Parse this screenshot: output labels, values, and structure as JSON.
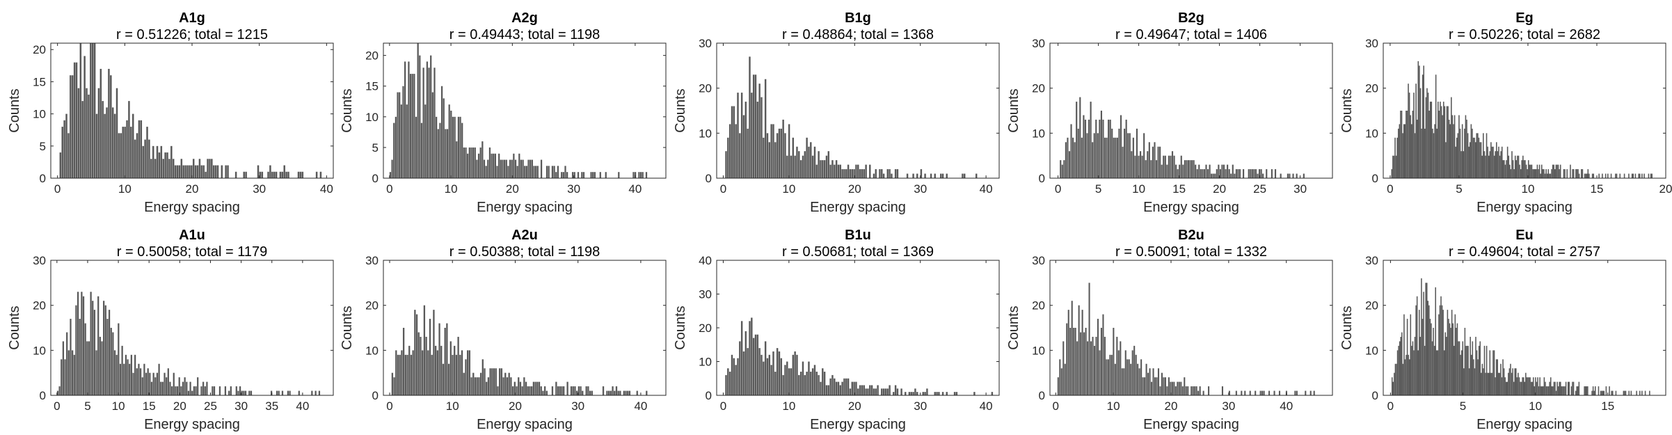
{
  "figure": {
    "background": "#ffffff",
    "bar_color": "#595959",
    "axis_color": "#262626"
  },
  "chart_data": [
    {
      "type": "bar",
      "title": "A1g",
      "subtitle": "r = 0.51226; total = 1215",
      "xlabel": "Energy spacing",
      "ylabel": "Counts",
      "xlim": [
        -1,
        41
      ],
      "ylim": [
        0,
        21
      ],
      "xticks": [
        0,
        10,
        20,
        30,
        40
      ],
      "yticks": [
        0,
        5,
        10,
        15,
        20
      ],
      "grid": false,
      "bin_width": 0.3,
      "envelope": [
        [
          0,
          0
        ],
        [
          0.3,
          4
        ],
        [
          1,
          8
        ],
        [
          2,
          13
        ],
        [
          3,
          16
        ],
        [
          4,
          18
        ],
        [
          5,
          17
        ],
        [
          6,
          14
        ],
        [
          7,
          13
        ],
        [
          8,
          12
        ],
        [
          9,
          10
        ],
        [
          10,
          9
        ],
        [
          12,
          7
        ],
        [
          14,
          5
        ],
        [
          16,
          4
        ],
        [
          18,
          3
        ],
        [
          20,
          2.5
        ],
        [
          22,
          2
        ],
        [
          25,
          1.5
        ],
        [
          28,
          1
        ],
        [
          32,
          0.7
        ],
        [
          36,
          0.4
        ],
        [
          40,
          0.2
        ]
      ],
      "data_max": 39
    },
    {
      "type": "bar",
      "title": "A2g",
      "subtitle": "r = 0.49443; total = 1198",
      "xlabel": "Energy spacing",
      "ylabel": "Counts",
      "xlim": [
        -1,
        45
      ],
      "ylim": [
        0,
        22
      ],
      "xticks": [
        0,
        10,
        20,
        30,
        40
      ],
      "yticks": [
        0,
        5,
        10,
        15,
        20
      ],
      "grid": false,
      "bin_width": 0.3,
      "envelope": [
        [
          0,
          0
        ],
        [
          0.3,
          4
        ],
        [
          1,
          9
        ],
        [
          2,
          13
        ],
        [
          3,
          15
        ],
        [
          4,
          16
        ],
        [
          5,
          16
        ],
        [
          6,
          15
        ],
        [
          7,
          14
        ],
        [
          8,
          12
        ],
        [
          9,
          10
        ],
        [
          10,
          9
        ],
        [
          12,
          7
        ],
        [
          14,
          5
        ],
        [
          16,
          4
        ],
        [
          18,
          3
        ],
        [
          20,
          3
        ],
        [
          22,
          2
        ],
        [
          25,
          1.5
        ],
        [
          28,
          1
        ],
        [
          32,
          0.7
        ],
        [
          36,
          0.4
        ],
        [
          42,
          0.2
        ]
      ],
      "data_max": 42
    },
    {
      "type": "bar",
      "title": "B1g",
      "subtitle": "r = 0.48864; total = 1368",
      "xlabel": "Energy spacing",
      "ylabel": "Counts",
      "xlim": [
        -1,
        42
      ],
      "ylim": [
        0,
        30
      ],
      "xticks": [
        0,
        10,
        20,
        30,
        40
      ],
      "yticks": [
        0,
        10,
        20,
        30
      ],
      "grid": false,
      "bin_width": 0.3,
      "envelope": [
        [
          0,
          0
        ],
        [
          0.3,
          5
        ],
        [
          1,
          11
        ],
        [
          2,
          15
        ],
        [
          3,
          18
        ],
        [
          4,
          19
        ],
        [
          5,
          18
        ],
        [
          6,
          16
        ],
        [
          7,
          14
        ],
        [
          8,
          12
        ],
        [
          9,
          10
        ],
        [
          10,
          9
        ],
        [
          12,
          7
        ],
        [
          14,
          5
        ],
        [
          16,
          4
        ],
        [
          18,
          3
        ],
        [
          20,
          2
        ],
        [
          22,
          1.5
        ],
        [
          25,
          1
        ],
        [
          28,
          0.8
        ],
        [
          32,
          0.4
        ],
        [
          36,
          0.2
        ]
      ],
      "data_max": 40
    },
    {
      "type": "bar",
      "title": "B2g",
      "subtitle": "r = 0.49647; total = 1406",
      "xlabel": "Energy spacing",
      "ylabel": "Counts",
      "xlim": [
        -1,
        34
      ],
      "ylim": [
        0,
        30
      ],
      "xticks": [
        0,
        5,
        10,
        15,
        20,
        25,
        30
      ],
      "yticks": [
        0,
        10,
        20,
        30
      ],
      "grid": false,
      "bin_width": 0.22,
      "envelope": [
        [
          0,
          0
        ],
        [
          0.3,
          4
        ],
        [
          1,
          9
        ],
        [
          2,
          13
        ],
        [
          3,
          14
        ],
        [
          4,
          14
        ],
        [
          5,
          13
        ],
        [
          6,
          12
        ],
        [
          7,
          11
        ],
        [
          8,
          10
        ],
        [
          9,
          9
        ],
        [
          10,
          8
        ],
        [
          11,
          7
        ],
        [
          13,
          5
        ],
        [
          15,
          4
        ],
        [
          17,
          3
        ],
        [
          19,
          2.5
        ],
        [
          22,
          2
        ],
        [
          25,
          1.2
        ],
        [
          28,
          0.8
        ],
        [
          31,
          0.5
        ],
        [
          33,
          0.3
        ]
      ],
      "data_max": 32
    },
    {
      "type": "bar",
      "title": "Eg",
      "subtitle": "r = 0.50226; total = 2682",
      "xlabel": "Energy spacing",
      "ylabel": "Counts",
      "xlim": [
        -0.5,
        20
      ],
      "ylim": [
        0,
        30
      ],
      "xticks": [
        0,
        5,
        10,
        15,
        20
      ],
      "yticks": [
        0,
        10,
        20,
        30
      ],
      "grid": false,
      "bin_width": 0.08,
      "envelope": [
        [
          0,
          0
        ],
        [
          0.1,
          4
        ],
        [
          0.5,
          9
        ],
        [
          1,
          13
        ],
        [
          1.5,
          16
        ],
        [
          2,
          18
        ],
        [
          2.5,
          18
        ],
        [
          3,
          17
        ],
        [
          3.5,
          15
        ],
        [
          4,
          14
        ],
        [
          5,
          11
        ],
        [
          6,
          9
        ],
        [
          7,
          7
        ],
        [
          8,
          5.5
        ],
        [
          9,
          4
        ],
        [
          10,
          3
        ],
        [
          11,
          2.5
        ],
        [
          12,
          2
        ],
        [
          13,
          1.5
        ],
        [
          14,
          1
        ],
        [
          15,
          0.8
        ],
        [
          17,
          0.4
        ],
        [
          19,
          0.2
        ]
      ],
      "data_max": 19
    },
    {
      "type": "bar",
      "title": "A1u",
      "subtitle": "r = 0.50058; total = 1179",
      "xlabel": "Energy spacing",
      "ylabel": "Counts",
      "xlim": [
        -1,
        45
      ],
      "ylim": [
        0,
        30
      ],
      "xticks": [
        0,
        5,
        10,
        15,
        20,
        25,
        30,
        35,
        40
      ],
      "yticks": [
        0,
        10,
        20,
        30
      ],
      "grid": false,
      "bin_width": 0.3,
      "envelope": [
        [
          0,
          0
        ],
        [
          0.3,
          4
        ],
        [
          1,
          9
        ],
        [
          2,
          13
        ],
        [
          3,
          16
        ],
        [
          4,
          17
        ],
        [
          5,
          17
        ],
        [
          6,
          16
        ],
        [
          7,
          15
        ],
        [
          8,
          14
        ],
        [
          9,
          12
        ],
        [
          10,
          11
        ],
        [
          12,
          8
        ],
        [
          14,
          6
        ],
        [
          16,
          5
        ],
        [
          18,
          4
        ],
        [
          20,
          3
        ],
        [
          22,
          2
        ],
        [
          25,
          1.5
        ],
        [
          28,
          1
        ],
        [
          32,
          0.6
        ],
        [
          36,
          0.4
        ],
        [
          42,
          0.2
        ]
      ],
      "data_max": 43
    },
    {
      "type": "bar",
      "title": "A2u",
      "subtitle": "r = 0.50388; total = 1198",
      "xlabel": "Energy spacing",
      "ylabel": "Counts",
      "xlim": [
        -1,
        44
      ],
      "ylim": [
        0,
        30
      ],
      "xticks": [
        0,
        10,
        20,
        30,
        40
      ],
      "yticks": [
        0,
        10,
        20,
        30
      ],
      "grid": false,
      "bin_width": 0.3,
      "envelope": [
        [
          0,
          0
        ],
        [
          0.3,
          4
        ],
        [
          1,
          9
        ],
        [
          2,
          12
        ],
        [
          3,
          14
        ],
        [
          4,
          15
        ],
        [
          5,
          15
        ],
        [
          6,
          15
        ],
        [
          7,
          14
        ],
        [
          8,
          13
        ],
        [
          9,
          12
        ],
        [
          10,
          11
        ],
        [
          12,
          8
        ],
        [
          14,
          6
        ],
        [
          16,
          5
        ],
        [
          18,
          4
        ],
        [
          20,
          3
        ],
        [
          22,
          2.5
        ],
        [
          25,
          2
        ],
        [
          28,
          1.5
        ],
        [
          32,
          1
        ],
        [
          36,
          0.5
        ],
        [
          41,
          0.3
        ]
      ],
      "data_max": 41
    },
    {
      "type": "bar",
      "title": "B1u",
      "subtitle": "r = 0.50681; total = 1369",
      "xlabel": "Energy spacing",
      "ylabel": "Counts",
      "xlim": [
        -1,
        42
      ],
      "ylim": [
        0,
        40
      ],
      "xticks": [
        0,
        10,
        20,
        30,
        40
      ],
      "yticks": [
        0,
        10,
        20,
        30,
        40
      ],
      "grid": false,
      "bin_width": 0.3,
      "envelope": [
        [
          0,
          0
        ],
        [
          0.3,
          5
        ],
        [
          1,
          11
        ],
        [
          2,
          15
        ],
        [
          3,
          17
        ],
        [
          4,
          18
        ],
        [
          5,
          17
        ],
        [
          6,
          16
        ],
        [
          7,
          14
        ],
        [
          8,
          13
        ],
        [
          9,
          11
        ],
        [
          10,
          10
        ],
        [
          12,
          8
        ],
        [
          14,
          6
        ],
        [
          16,
          5
        ],
        [
          18,
          4
        ],
        [
          20,
          3
        ],
        [
          22,
          2
        ],
        [
          25,
          1.5
        ],
        [
          28,
          1
        ],
        [
          32,
          0.6
        ],
        [
          36,
          0.4
        ],
        [
          41,
          0.2
        ]
      ],
      "data_max": 41
    },
    {
      "type": "bar",
      "title": "B2u",
      "subtitle": "r = 0.50091; total = 1332",
      "xlabel": "Energy spacing",
      "ylabel": "Counts",
      "xlim": [
        -1,
        48
      ],
      "ylim": [
        0,
        30
      ],
      "xticks": [
        0,
        10,
        20,
        30,
        40
      ],
      "yticks": [
        0,
        10,
        20,
        30
      ],
      "grid": false,
      "bin_width": 0.3,
      "envelope": [
        [
          0,
          0
        ],
        [
          0.3,
          5
        ],
        [
          1,
          10
        ],
        [
          2,
          15
        ],
        [
          3,
          18
        ],
        [
          4,
          19
        ],
        [
          5,
          19
        ],
        [
          6,
          18
        ],
        [
          7,
          16
        ],
        [
          8,
          14
        ],
        [
          9,
          12
        ],
        [
          10,
          11
        ],
        [
          12,
          9
        ],
        [
          14,
          7
        ],
        [
          16,
          5
        ],
        [
          18,
          4
        ],
        [
          20,
          2.5
        ],
        [
          22,
          2
        ],
        [
          25,
          1.2
        ],
        [
          28,
          0.8
        ],
        [
          32,
          0.5
        ],
        [
          38,
          0.3
        ],
        [
          45,
          0.2
        ]
      ],
      "data_max": 45
    },
    {
      "type": "bar",
      "title": "Eu",
      "subtitle": "r = 0.49604; total = 2757",
      "xlabel": "Energy spacing",
      "ylabel": "Counts",
      "xlim": [
        -0.5,
        19
      ],
      "ylim": [
        0,
        30
      ],
      "xticks": [
        0,
        5,
        10,
        15
      ],
      "yticks": [
        0,
        10,
        20,
        30
      ],
      "grid": false,
      "bin_width": 0.075,
      "envelope": [
        [
          0,
          0
        ],
        [
          0.1,
          4
        ],
        [
          0.5,
          9
        ],
        [
          1,
          13
        ],
        [
          1.5,
          16
        ],
        [
          2,
          18
        ],
        [
          2.5,
          18
        ],
        [
          3,
          17
        ],
        [
          3.5,
          16
        ],
        [
          4,
          14
        ],
        [
          5,
          11
        ],
        [
          6,
          9
        ],
        [
          7,
          7
        ],
        [
          8,
          5
        ],
        [
          9,
          4
        ],
        [
          10,
          3
        ],
        [
          11,
          2.5
        ],
        [
          12,
          2
        ],
        [
          13,
          1.5
        ],
        [
          14,
          1
        ],
        [
          15,
          0.7
        ],
        [
          17,
          0.4
        ],
        [
          18,
          0.2
        ]
      ],
      "data_max": 18
    }
  ]
}
